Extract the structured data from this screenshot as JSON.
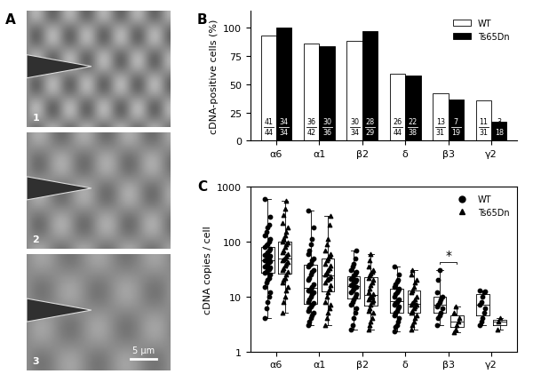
{
  "image_panel": {
    "panel_label": "A",
    "frames": [
      "1",
      "2",
      "3"
    ],
    "scale_bar": "5 µm"
  },
  "chart_data": [
    {
      "type": "bar",
      "panel_label": "B",
      "y_label": "cDNA-positive cells (%)",
      "categories": [
        "α6",
        "α1",
        "β2",
        "δ",
        "β3",
        "γ2"
      ],
      "ylim": [
        0,
        115
      ],
      "yticks": [
        0,
        25,
        50,
        75,
        100
      ],
      "legend": "upper right",
      "data_labels": true,
      "series": [
        {
          "name": "WT",
          "color": "#ffffff",
          "values": [
            93.2,
            85.7,
            88.2,
            59.1,
            41.9,
            35.5
          ],
          "positive": [
            41,
            36,
            30,
            26,
            13,
            11
          ],
          "total": [
            44,
            42,
            34,
            44,
            31,
            31
          ]
        },
        {
          "name": "Ts65Dn",
          "color": "#000000",
          "values": [
            100.0,
            83.3,
            96.6,
            57.9,
            36.8,
            16.7
          ],
          "positive": [
            34,
            30,
            28,
            22,
            7,
            3
          ],
          "total": [
            34,
            36,
            29,
            38,
            19,
            18
          ]
        }
      ]
    },
    {
      "type": "box",
      "panel_label": "C",
      "y_label": "cDNA copies / cell",
      "categories": [
        "α6",
        "α1",
        "β2",
        "δ",
        "β3",
        "γ2"
      ],
      "log": "y",
      "ylim": [
        1,
        1000
      ],
      "yticks": [
        1,
        10,
        100,
        1000
      ],
      "legend": "upper right",
      "annotations": [
        {
          "text": "*",
          "category": "β3"
        }
      ],
      "series": [
        {
          "name": "WT",
          "color": "#000000",
          "marker": "circle",
          "values": [
            [
              4,
              6,
              8,
              10,
              12,
              15,
              18,
              20,
              22,
              25,
              27,
              28,
              30,
              32,
              34,
              35,
              37,
              40,
              42,
              44,
              45,
              47,
              50,
              52,
              55,
              58,
              60,
              65,
              70,
              75,
              80,
              85,
              90,
              100,
              110,
              130,
              150,
              180,
              200,
              280,
              600
            ],
            [
              3,
              3.5,
              4,
              4.5,
              5,
              5.5,
              6,
              6.5,
              7,
              7.5,
              8,
              9,
              10,
              11,
              12,
              13,
              13,
              14,
              15,
              17,
              20,
              22,
              25,
              28,
              30,
              35,
              38,
              40,
              45,
              50,
              60,
              70,
              90,
              110,
              180,
              370
            ],
            [
              2.5,
              3,
              4,
              5,
              6,
              7,
              8,
              9,
              10,
              11,
              12,
              13,
              14,
              15,
              15,
              16,
              17,
              18,
              19,
              20,
              21,
              22,
              24,
              26,
              28,
              30,
              35,
              40,
              50,
              70
            ],
            [
              2.3,
              2.8,
              3,
              3.5,
              4,
              4.5,
              5,
              5.5,
              6,
              6.5,
              7,
              7.5,
              8,
              8.5,
              9,
              10,
              11,
              12,
              13,
              14,
              15,
              17,
              19,
              20,
              25,
              35
            ],
            [
              3,
              4,
              4.5,
              5,
              6,
              6.5,
              7,
              8,
              9,
              10,
              12,
              20,
              30
            ],
            [
              3,
              3.5,
              4,
              5,
              6,
              7,
              8,
              10,
              12,
              12.5,
              13
            ]
          ]
        },
        {
          "name": "Ts65Dn",
          "color": "#000000",
          "marker": "triangle",
          "values": [
            [
              5,
              8,
              10,
              13,
              15,
              18,
              20,
              22,
              25,
              28,
              30,
              33,
              36,
              40,
              42,
              45,
              48,
              50,
              55,
              60,
              65,
              70,
              80,
              90,
              95,
              100,
              110,
              130,
              150,
              180,
              220,
              300,
              400,
              560
            ],
            [
              3,
              4,
              5,
              6,
              7,
              8,
              10,
              12,
              14,
              16,
              18,
              20,
              21,
              22,
              23,
              25,
              27,
              30,
              33,
              36,
              40,
              45,
              50,
              55,
              60,
              70,
              90,
              110,
              200,
              290
            ],
            [
              2.5,
              3,
              3.5,
              4,
              5,
              5.5,
              6,
              7,
              8,
              8.5,
              9,
              9.5,
              10,
              10,
              11,
              12,
              14,
              16,
              18,
              20,
              22,
              24,
              26,
              28,
              30,
              35,
              45,
              60
            ],
            [
              2.5,
              3,
              3.5,
              4,
              4.5,
              5,
              5.5,
              6,
              6.5,
              7,
              7,
              7.5,
              8,
              9,
              10,
              12,
              13,
              15,
              18,
              20,
              25,
              30
            ],
            [
              2.2,
              2.5,
              3,
              3.5,
              4,
              5,
              6.5
            ],
            [
              2.5,
              3.5,
              4
            ]
          ]
        }
      ]
    }
  ]
}
